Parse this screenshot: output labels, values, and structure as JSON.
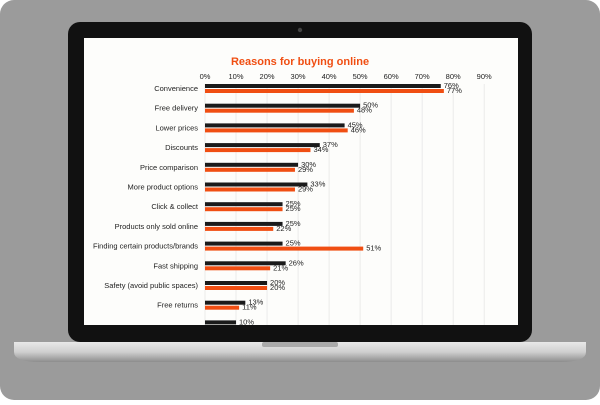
{
  "chart_data": {
    "type": "bar",
    "orientation": "horizontal",
    "title": "Reasons for buying online",
    "categories": [
      "Convenience",
      "Free delivery",
      "Lower prices",
      "Discounts",
      "Price comparison",
      "More product options",
      "Click & collect",
      "Products only sold online",
      "Finding certain products/brands",
      "Fast shipping",
      "Safety (avoid public spaces)",
      "Free returns",
      null
    ],
    "series": [
      {
        "color": "#1a1a1a",
        "values": [
          76,
          50,
          45,
          37,
          30,
          33,
          25,
          25,
          25,
          26,
          20,
          13,
          10
        ],
        "value_labels": [
          "76%",
          "50%",
          "45%",
          "37%",
          "30%",
          "33%",
          "25%",
          "25%",
          "25%",
          "26%",
          "20%",
          "13%",
          "10%"
        ]
      },
      {
        "color": "#f04e12",
        "values": [
          77,
          48,
          46,
          34,
          29,
          29,
          25,
          22,
          51,
          21,
          20,
          11,
          null
        ],
        "value_labels": [
          "77%",
          "48%",
          "46%",
          "34%",
          "29%",
          "29%",
          "25%",
          "22%",
          "51%",
          "21%",
          "20%",
          "11%",
          null
        ]
      }
    ],
    "xlim": [
      0,
      95
    ],
    "xticks": [
      {
        "value": 0,
        "label": "0%"
      },
      {
        "value": 10,
        "label": "10%"
      },
      {
        "value": 20,
        "label": "20%"
      },
      {
        "value": 30,
        "label": "30%"
      },
      {
        "value": 40,
        "label": "40%"
      },
      {
        "value": 50,
        "label": "50%"
      },
      {
        "value": 60,
        "label": "60%"
      },
      {
        "value": 70,
        "label": "70%"
      },
      {
        "value": 80,
        "label": "80%"
      },
      {
        "value": 90,
        "label": "90%"
      }
    ],
    "grid": true
  }
}
